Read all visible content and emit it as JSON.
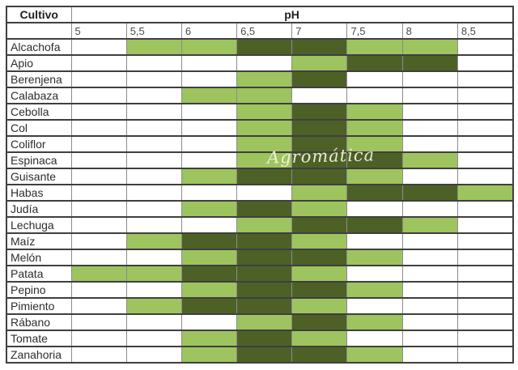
{
  "chart_data": {
    "type": "heatmap",
    "title": "pH",
    "corner_label": "Cultivo",
    "x_labels": [
      "5",
      "5,5",
      "6",
      "6,5",
      "7",
      "7,5",
      "8",
      "8,5"
    ],
    "cell_states": {
      "w": "white-empty",
      "L": "light-green-suitable",
      "D": "dark-green-optimal"
    },
    "rows": [
      {
        "crop": "Alcachofa",
        "cells": [
          "w",
          "L",
          "L",
          "D",
          "D",
          "L",
          "L",
          "w"
        ]
      },
      {
        "crop": "Apio",
        "cells": [
          "w",
          "w",
          "w",
          "w",
          "L",
          "D",
          "D",
          "w"
        ]
      },
      {
        "crop": "Berenjena",
        "cells": [
          "w",
          "w",
          "w",
          "L",
          "D",
          "w",
          "w",
          "w"
        ]
      },
      {
        "crop": "Calabaza",
        "cells": [
          "w",
          "w",
          "L",
          "L",
          "w",
          "w",
          "w",
          "w"
        ]
      },
      {
        "crop": "Cebolla",
        "cells": [
          "w",
          "w",
          "w",
          "L",
          "D",
          "L",
          "w",
          "w"
        ]
      },
      {
        "crop": "Col",
        "cells": [
          "w",
          "w",
          "w",
          "L",
          "D",
          "L",
          "w",
          "w"
        ]
      },
      {
        "crop": "Coliflor",
        "cells": [
          "w",
          "w",
          "w",
          "L",
          "D",
          "L",
          "w",
          "w"
        ]
      },
      {
        "crop": "Espinaca",
        "cells": [
          "w",
          "w",
          "w",
          "L",
          "D",
          "D",
          "L",
          "w"
        ]
      },
      {
        "crop": "Guisante",
        "cells": [
          "w",
          "w",
          "L",
          "D",
          "D",
          "L",
          "w",
          "w"
        ]
      },
      {
        "crop": "Habas",
        "cells": [
          "w",
          "w",
          "w",
          "w",
          "L",
          "D",
          "D",
          "L"
        ]
      },
      {
        "crop": "Judía",
        "cells": [
          "w",
          "w",
          "L",
          "D",
          "L",
          "w",
          "w",
          "w"
        ]
      },
      {
        "crop": "Lechuga",
        "cells": [
          "w",
          "w",
          "w",
          "L",
          "D",
          "D",
          "L",
          "w"
        ]
      },
      {
        "crop": "Maíz",
        "cells": [
          "w",
          "L",
          "D",
          "D",
          "L",
          "w",
          "w",
          "w"
        ]
      },
      {
        "crop": "Melón",
        "cells": [
          "w",
          "w",
          "L",
          "D",
          "D",
          "L",
          "w",
          "w"
        ]
      },
      {
        "crop": "Patata",
        "cells": [
          "L",
          "L",
          "D",
          "D",
          "L",
          "w",
          "w",
          "w"
        ]
      },
      {
        "crop": "Pepino",
        "cells": [
          "w",
          "w",
          "L",
          "D",
          "D",
          "L",
          "w",
          "w"
        ]
      },
      {
        "crop": "Pimiento",
        "cells": [
          "w",
          "L",
          "D",
          "D",
          "L",
          "w",
          "w",
          "w"
        ]
      },
      {
        "crop": "Rábano",
        "cells": [
          "w",
          "w",
          "w",
          "L",
          "D",
          "L",
          "w",
          "w"
        ]
      },
      {
        "crop": "Tomate",
        "cells": [
          "w",
          "w",
          "L",
          "D",
          "L",
          "w",
          "w",
          "w"
        ]
      },
      {
        "crop": "Zanahoria",
        "cells": [
          "w",
          "w",
          "L",
          "D",
          "D",
          "L",
          "w",
          "w"
        ]
      }
    ]
  },
  "watermark": "Agromática",
  "colors": {
    "light_green": "#9dc45e",
    "dark_green": "#4d6127",
    "grid_dark": "#3f3f3f",
    "grid_light": "#8c8c8c"
  }
}
